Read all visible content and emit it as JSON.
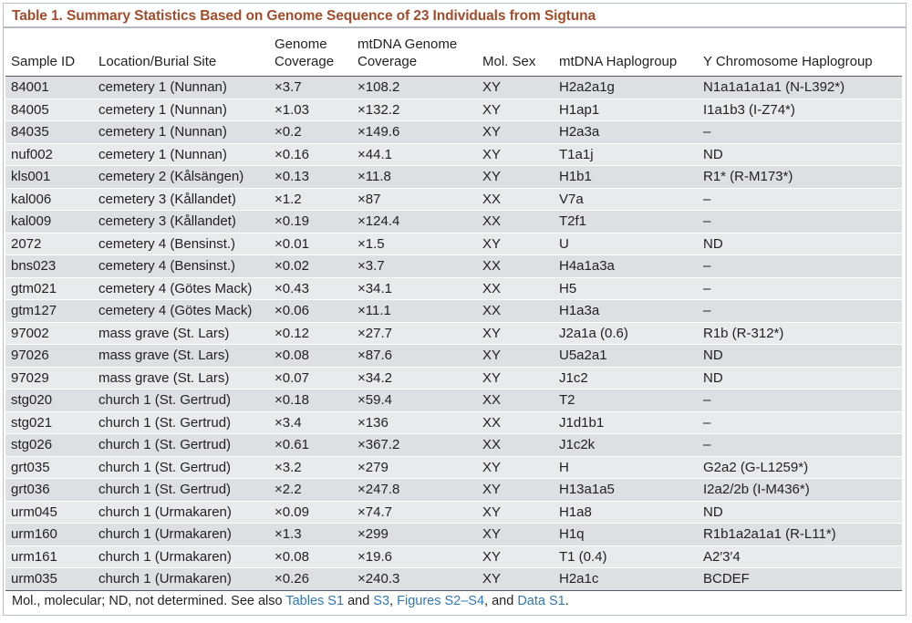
{
  "caption": "Table 1.  Summary Statistics Based on Genome Sequence of 23 Individuals from Sigtuna",
  "headers": {
    "sample_id": "Sample ID",
    "location": "Location/Burial Site",
    "genome_cov_1": "Genome",
    "genome_cov_2": "Coverage",
    "mtdna_cov_1": "mtDNA Genome",
    "mtdna_cov_2": "Coverage",
    "mol_sex": "Mol. Sex",
    "mtdna_hg": "mtDNA Haplogroup",
    "y_hg": "Y Chromosome Haplogroup"
  },
  "rows": [
    [
      "84001",
      "cemetery 1 (Nunnan)",
      "×3.7",
      "×108.2",
      "XY",
      "H2a2a1g",
      "N1a1a1a1a1 (N-L392*)"
    ],
    [
      "84005",
      "cemetery 1 (Nunnan)",
      "×1.03",
      "×132.2",
      "XY",
      "H1ap1",
      "I1a1b3 (I-Z74*)"
    ],
    [
      "84035",
      "cemetery 1 (Nunnan)",
      "×0.2",
      "×149.6",
      "XY",
      "H2a3a",
      "–"
    ],
    [
      "nuf002",
      "cemetery 1 (Nunnan)",
      "×0.16",
      "×44.1",
      "XY",
      "T1a1j",
      "ND"
    ],
    [
      "kls001",
      "cemetery 2 (Kålsängen)",
      "×0.13",
      "×11.8",
      "XY",
      "H1b1",
      "R1* (R-M173*)"
    ],
    [
      "kal006",
      "cemetery 3 (Kållandet)",
      "×1.2",
      "×87",
      "XX",
      "V7a",
      "–"
    ],
    [
      "kal009",
      "cemetery 3 (Kållandet)",
      "×0.19",
      "×124.4",
      "XX",
      "T2f1",
      "–"
    ],
    [
      "2072",
      "cemetery 4 (Bensinst.)",
      "×0.01",
      "×1.5",
      "XY",
      "U",
      "ND"
    ],
    [
      "bns023",
      "cemetery 4 (Bensinst.)",
      "×0.02",
      "×3.7",
      "XX",
      "H4a1a3a",
      "–"
    ],
    [
      "gtm021",
      "cemetery 4 (Götes Mack)",
      "×0.43",
      "×34.1",
      "XX",
      "H5",
      "–"
    ],
    [
      "gtm127",
      "cemetery 4 (Götes Mack)",
      "×0.06",
      "×11.1",
      "XX",
      "H1a3a",
      "–"
    ],
    [
      "97002",
      "mass grave (St. Lars)",
      "×0.12",
      "×27.7",
      "XY",
      "J2a1a (0.6)",
      "R1b (R-312*)"
    ],
    [
      "97026",
      "mass grave (St. Lars)",
      "×0.08",
      "×87.6",
      "XY",
      "U5a2a1",
      "ND"
    ],
    [
      "97029",
      "mass grave (St. Lars)",
      "×0.07",
      "×34.2",
      "XY",
      "J1c2",
      "ND"
    ],
    [
      "stg020",
      "church 1 (St. Gertrud)",
      "×0.18",
      "×59.4",
      "XX",
      "T2",
      "–"
    ],
    [
      "stg021",
      "church 1 (St. Gertrud)",
      "×3.4",
      "×136",
      "XX",
      "J1d1b1",
      "–"
    ],
    [
      "stg026",
      "church 1 (St. Gertrud)",
      "×0.61",
      "×367.2",
      "XX",
      "J1c2k",
      "–"
    ],
    [
      "grt035",
      "church 1 (St. Gertrud)",
      "×3.2",
      "×279",
      "XY",
      "H",
      "G2a2 (G-L1259*)"
    ],
    [
      "grt036",
      "church 1 (St. Gertrud)",
      "×2.2",
      "×247.8",
      "XY",
      "H13a1a5",
      "I2a2/2b (I-M436*)"
    ],
    [
      "urm045",
      "church 1 (Urmakaren)",
      "×0.09",
      "×74.7",
      "XY",
      "H1a8",
      "ND"
    ],
    [
      "urm160",
      "church 1 (Urmakaren)",
      "×1.3",
      "×299",
      "XY",
      "H1q",
      "R1b1a2a1a1 (R-L11*)"
    ],
    [
      "urm161",
      "church 1 (Urmakaren)",
      "×0.08",
      "×19.6",
      "XY",
      "T1 (0.4)",
      "A2′3′4"
    ],
    [
      "urm035",
      "church 1 (Urmakaren)",
      "×0.26",
      "×240.3",
      "XY",
      "H2a1c",
      "BCDEF"
    ]
  ],
  "footnote": {
    "text_1": "Mol., molecular; ND, not determined. See also ",
    "link_1": "Tables S1",
    "text_2": " and ",
    "link_2": "S3",
    "text_3": ", ",
    "link_3": "Figures S2–S4",
    "text_4": ", and ",
    "link_4": "Data S1",
    "text_5": ".",
    "link_color": "#2f79b9",
    "caption_color": "#a34c2b"
  }
}
